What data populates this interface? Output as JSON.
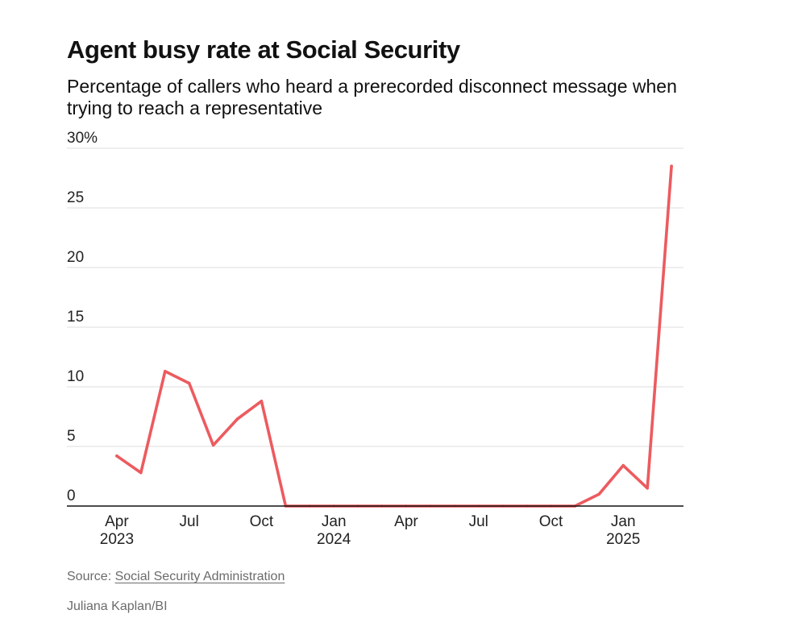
{
  "header": {
    "title": "Agent busy rate at Social Security",
    "subtitle": "Percentage of callers who heard a prerecorded disconnect message when trying to reach a representative"
  },
  "footer": {
    "source_prefix": "Source: ",
    "source_link": "Social Security Administration",
    "credit": "Juliana Kaplan/BI"
  },
  "chart_data": {
    "type": "line",
    "title": "Agent busy rate at Social Security",
    "subtitle": "Percentage of callers who heard a prerecorded disconnect message when trying to reach a representative",
    "xlabel": "",
    "ylabel": "",
    "ylim": [
      0,
      30
    ],
    "yticks": [
      {
        "value": 0,
        "label": "0"
      },
      {
        "value": 5,
        "label": "5"
      },
      {
        "value": 10,
        "label": "10"
      },
      {
        "value": 15,
        "label": "15"
      },
      {
        "value": 20,
        "label": "20"
      },
      {
        "value": 25,
        "label": "25"
      },
      {
        "value": 30,
        "label": "30%"
      }
    ],
    "xticks": [
      {
        "x": "2023-04",
        "line1": "Apr",
        "line2": "2023"
      },
      {
        "x": "2023-07",
        "line1": "Jul",
        "line2": ""
      },
      {
        "x": "2023-10",
        "line1": "Oct",
        "line2": ""
      },
      {
        "x": "2024-01",
        "line1": "Jan",
        "line2": "2024"
      },
      {
        "x": "2024-04",
        "line1": "Apr",
        "line2": ""
      },
      {
        "x": "2024-07",
        "line1": "Jul",
        "line2": ""
      },
      {
        "x": "2024-10",
        "line1": "Oct",
        "line2": ""
      },
      {
        "x": "2025-01",
        "line1": "Jan",
        "line2": "2025"
      }
    ],
    "x_domain": [
      "2023-03",
      "2025-04"
    ],
    "grid": true,
    "line_color": "#ec5b5f",
    "series": [
      {
        "x": [
          "2023-04",
          "2023-05",
          "2023-06",
          "2023-07",
          "2023-08",
          "2023-09",
          "2023-10",
          "2023-11",
          "2023-12",
          "2024-01",
          "2024-02",
          "2024-03",
          "2024-04",
          "2024-05",
          "2024-06",
          "2024-07",
          "2024-08",
          "2024-09",
          "2024-10",
          "2024-11",
          "2024-12",
          "2025-01",
          "2025-02",
          "2025-03"
        ],
        "values": [
          4.2,
          2.8,
          11.3,
          10.3,
          5.1,
          7.3,
          8.8,
          0,
          0,
          0,
          0,
          0,
          0,
          0,
          0,
          0,
          0,
          0,
          0,
          0,
          1.0,
          3.4,
          1.5,
          28.5
        ]
      }
    ]
  }
}
